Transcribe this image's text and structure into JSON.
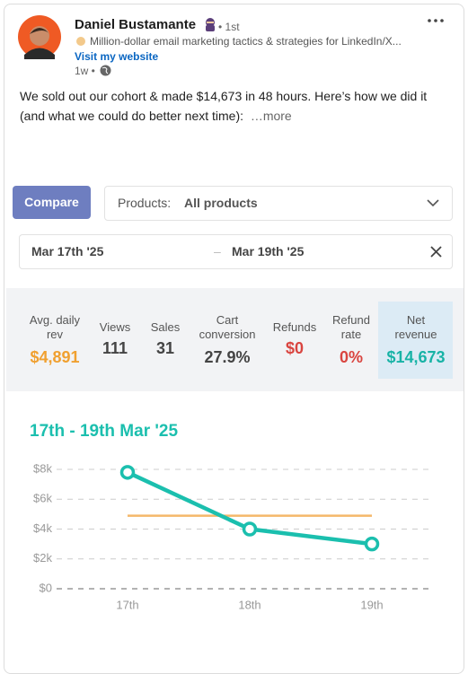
{
  "post": {
    "author": "Daniel Bustamante",
    "degree": "• 1st",
    "headline": "Million-dollar email marketing tactics & strategies for LinkedIn/X...",
    "link": "Visit my website",
    "time": "1w •",
    "body": "We sold out our cohort & made $14,673 in 48 hours. Here’s how we did it (and what we could do better next time):",
    "more": "…more"
  },
  "dashboard": {
    "compare": "Compare",
    "products_label": "Products:",
    "products_value": "All products",
    "date_start": "Mar 17th '25",
    "date_separator": "–",
    "date_end": "Mar 19th '25",
    "stats": [
      {
        "label": [
          "Avg. daily",
          "rev"
        ],
        "value": "$4,891",
        "color": "#f0a030"
      },
      {
        "label": [
          "Views"
        ],
        "value": "111",
        "color": "#444444"
      },
      {
        "label": [
          "Sales"
        ],
        "value": "31",
        "color": "#444444"
      },
      {
        "label": [
          "Cart",
          "conversion"
        ],
        "value": "27.9%",
        "color": "#444444"
      },
      {
        "label": [
          "Refunds"
        ],
        "value": "$0",
        "color": "#d9443f"
      },
      {
        "label": [
          "Refund",
          "rate"
        ],
        "value": "0%",
        "color": "#d9443f"
      },
      {
        "label": [
          "Net",
          "revenue"
        ],
        "value": "$14,673",
        "color": "#18b3a6"
      }
    ]
  },
  "chart_data": {
    "type": "line",
    "title": "17th - 19th Mar '25",
    "categories": [
      "17th",
      "18th",
      "19th"
    ],
    "series": [
      {
        "color": "#1bbfae",
        "values": [
          7800,
          4000,
          3000
        ]
      }
    ],
    "reference_line": {
      "value": 4891,
      "color": "#f5b76a"
    },
    "ylim": [
      0,
      8000
    ],
    "yticks": [
      {
        "value": 0,
        "label": "$0"
      },
      {
        "value": 2000,
        "label": "$2k"
      },
      {
        "value": 4000,
        "label": "$4k"
      },
      {
        "value": 6000,
        "label": "$6k"
      },
      {
        "value": 8000,
        "label": "$8k"
      }
    ],
    "grid": true
  }
}
